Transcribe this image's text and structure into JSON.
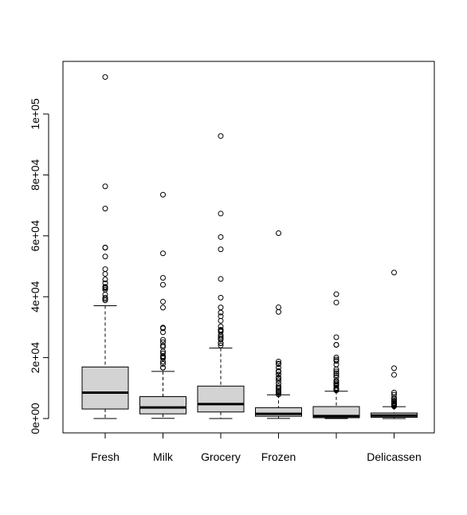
{
  "chart_data": {
    "type": "boxplot",
    "title": "",
    "xlabel": "",
    "ylabel": "",
    "ylim": [
      0,
      112151
    ],
    "y_ticks": [
      {
        "value": 0,
        "label": "0e+00"
      },
      {
        "value": 20000,
        "label": "2e+04"
      },
      {
        "value": 40000,
        "label": "4e+04"
      },
      {
        "value": 60000,
        "label": "6e+04"
      },
      {
        "value": 80000,
        "label": "8e+04"
      },
      {
        "value": 100000,
        "label": "1e+05"
      }
    ],
    "categories": [
      "Fresh",
      "Milk",
      "Grocery",
      "Frozen",
      "",
      "Delicassen"
    ],
    "boxes": [
      {
        "name": "Fresh",
        "min": 3,
        "q1": 3128,
        "median": 8504,
        "q3": 16934,
        "whisker_high": 37036,
        "outliers": [
          112151,
          76237,
          68951,
          56159,
          56083,
          53205,
          49063,
          47493,
          45640,
          44466,
          43265,
          43088,
          42786,
          42312,
          40721,
          39679,
          39228,
          38793
        ]
      },
      {
        "name": "Milk",
        "min": 55,
        "q1": 1533,
        "median": 3627,
        "q3": 7190,
        "whisker_high": 15488,
        "outliers": [
          73498,
          54259,
          46197,
          43950,
          38369,
          36423,
          29892,
          29627,
          28326,
          25862,
          25071,
          23998,
          23527,
          22044,
          21412,
          20484,
          20188,
          19805,
          18664,
          17972,
          16729,
          16687
        ]
      },
      {
        "name": "Grocery",
        "min": 3,
        "q1": 2153,
        "median": 4756,
        "q3": 10656,
        "whisker_high": 23127,
        "outliers": [
          92780,
          67298,
          59598,
          55571,
          45828,
          39694,
          36486,
          34792,
          33586,
          32114,
          30243,
          29155,
          28921,
          28540,
          27380,
          26839,
          26316,
          25957,
          24708,
          24773,
          23998
        ]
      },
      {
        "name": "Frozen",
        "min": 25,
        "q1": 742,
        "median": 1526,
        "q3": 3554,
        "whisker_high": 7782,
        "outliers": [
          60869,
          36534,
          35009,
          18711,
          18028,
          17866,
          16745,
          15601,
          15348,
          14472,
          13486,
          13223,
          12569,
          11559,
          10643,
          10155,
          9735,
          9154,
          8853,
          8692,
          8321,
          7888
        ]
      },
      {
        "name": "",
        "min": 3,
        "q1": 257,
        "median": 817,
        "q3": 3922,
        "whisker_high": 8969,
        "outliers": [
          40827,
          38102,
          26701,
          24231,
          24171,
          20070,
          19410,
          18906,
          17740,
          16171,
          15469,
          14841,
          14235,
          13583,
          12408,
          12034,
          11577,
          11215,
          10790,
          10069,
          9836,
          9529,
          9265
        ]
      },
      {
        "name": "Delicassen",
        "min": 3,
        "q1": 408,
        "median": 966,
        "q3": 1820,
        "whisker_high": 3900,
        "outliers": [
          47943,
          16523,
          14351,
          8550,
          7844,
          6854,
          6372,
          5864,
          5609,
          5137,
          4948,
          4829,
          4738,
          4611,
          4539,
          4485,
          4440,
          4366,
          4334,
          4291,
          4247,
          4200,
          4100,
          4021
        ]
      }
    ],
    "colors": {
      "box_fill": "#d3d3d3",
      "stroke": "#000000",
      "background": "#ffffff"
    },
    "grid": false,
    "legend": "none"
  }
}
